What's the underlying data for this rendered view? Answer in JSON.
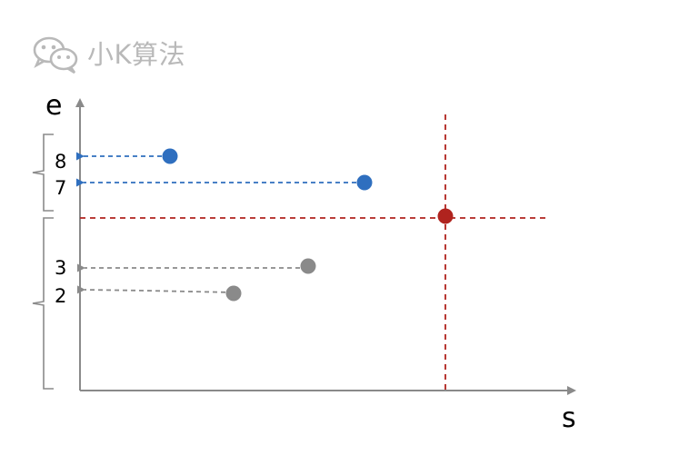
{
  "watermark": {
    "text": "小K算法",
    "icon": "wechat-icon",
    "color": "#b9b9b9"
  },
  "axes": {
    "x_label": "s",
    "y_label": "e"
  },
  "y_tick_labels": [
    "8",
    "7",
    "3",
    "2"
  ],
  "colors": {
    "axis": "#8a8a8a",
    "blue": "#2f6fbf",
    "gray": "#8a8a8a",
    "red": "#b0231e"
  },
  "points": [
    {
      "group": "blue",
      "e_label": "8"
    },
    {
      "group": "blue",
      "e_label": "7"
    },
    {
      "group": "gray",
      "e_label": "3"
    },
    {
      "group": "gray",
      "e_label": "2"
    },
    {
      "group": "red",
      "e_label": ""
    }
  ],
  "brackets": [
    "upper-group",
    "lower-group"
  ]
}
